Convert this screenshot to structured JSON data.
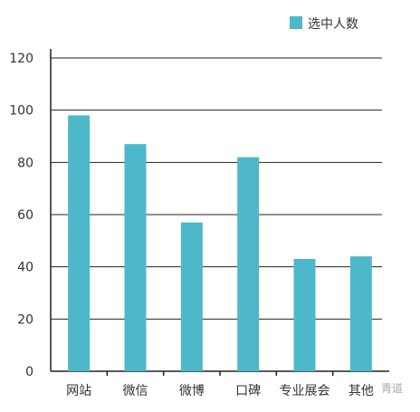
{
  "chart_data": {
    "type": "bar",
    "categories": [
      "网站",
      "微信",
      "微博",
      "口碑",
      "专业展会",
      "其他"
    ],
    "series": [
      {
        "name": "选中人数",
        "values": [
          98,
          87,
          57,
          82,
          43,
          44
        ]
      }
    ],
    "ylim": [
      0,
      120
    ],
    "yticks": [
      0,
      20,
      40,
      60,
      80,
      100,
      120
    ],
    "grid": true,
    "legend_position": "top-right",
    "colors": {
      "bar": "#4db8c9",
      "grid": "#222222",
      "text": "#333333"
    }
  },
  "watermark": "青道"
}
